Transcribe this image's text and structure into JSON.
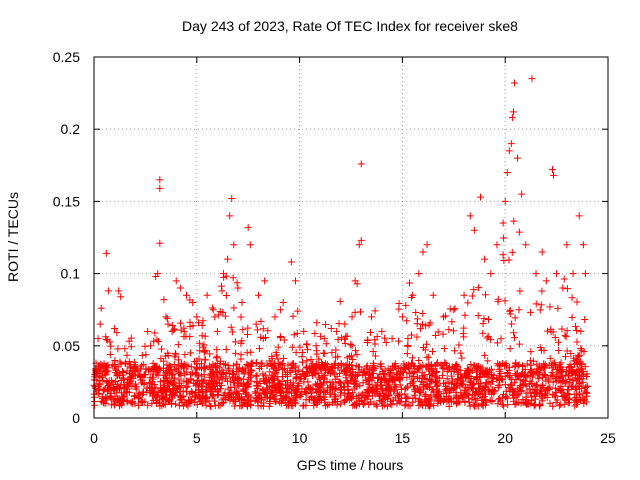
{
  "chart_data": {
    "type": "scatter",
    "title": "Day 243 of 2023, Rate Of TEC Index for receiver ske8",
    "xlabel": "GPS time / hours",
    "ylabel": "ROTI / TECUs",
    "xlim": [
      0,
      25
    ],
    "ylim": [
      0,
      0.25
    ],
    "xticks": [
      "0",
      "5",
      "10",
      "15",
      "20",
      "25"
    ],
    "yticks": [
      "0",
      "0.05",
      "0.1",
      "0.15",
      "0.2",
      "0.25"
    ],
    "grid": true,
    "marker": "plus",
    "color": "#ff0000",
    "series": [
      {
        "points": [
          [
            0.1,
            0.038
          ],
          [
            0.2,
            0.055
          ],
          [
            0.3,
            0.065
          ],
          [
            0.35,
            0.076
          ],
          [
            0.6,
            0.114
          ],
          [
            0.7,
            0.088
          ],
          [
            1.0,
            0.062
          ],
          [
            1.2,
            0.088
          ],
          [
            1.3,
            0.084
          ],
          [
            1.5,
            0.048
          ],
          [
            2.0,
            0.035
          ],
          [
            2.5,
            0.03
          ],
          [
            3.0,
            0.098
          ],
          [
            3.1,
            0.1
          ],
          [
            3.2,
            0.165
          ],
          [
            3.2,
            0.159
          ],
          [
            3.2,
            0.121
          ],
          [
            3.4,
            0.082
          ],
          [
            3.5,
            0.07
          ],
          [
            3.6,
            0.065
          ],
          [
            3.8,
            0.06
          ],
          [
            4.0,
            0.095
          ],
          [
            4.2,
            0.09
          ],
          [
            4.5,
            0.085
          ],
          [
            4.8,
            0.08
          ],
          [
            5.0,
            0.07
          ],
          [
            5.5,
            0.085
          ],
          [
            5.8,
            0.075
          ],
          [
            6.0,
            0.06
          ],
          [
            6.3,
            0.1
          ],
          [
            6.5,
            0.11
          ],
          [
            6.6,
            0.14
          ],
          [
            6.7,
            0.152
          ],
          [
            6.8,
            0.12
          ],
          [
            7.0,
            0.09
          ],
          [
            7.2,
            0.08
          ],
          [
            7.5,
            0.132
          ],
          [
            7.6,
            0.12
          ],
          [
            8.0,
            0.085
          ],
          [
            8.3,
            0.095
          ],
          [
            8.8,
            0.07
          ],
          [
            9.2,
            0.08
          ],
          [
            9.6,
            0.108
          ],
          [
            9.8,
            0.095
          ],
          [
            10.2,
            0.06
          ],
          [
            10.8,
            0.05
          ],
          [
            11.2,
            0.055
          ],
          [
            11.8,
            0.06
          ],
          [
            12.2,
            0.065
          ],
          [
            12.7,
            0.095
          ],
          [
            12.8,
            0.093
          ],
          [
            12.9,
            0.12
          ],
          [
            13.0,
            0.123
          ],
          [
            13.0,
            0.176
          ],
          [
            13.5,
            0.07
          ],
          [
            14.0,
            0.06
          ],
          [
            14.5,
            0.055
          ],
          [
            15.0,
            0.07
          ],
          [
            15.5,
            0.085
          ],
          [
            15.8,
            0.1
          ],
          [
            16.0,
            0.115
          ],
          [
            16.2,
            0.12
          ],
          [
            16.5,
            0.085
          ],
          [
            17.0,
            0.07
          ],
          [
            17.5,
            0.075
          ],
          [
            18.0,
            0.085
          ],
          [
            18.3,
            0.14
          ],
          [
            18.5,
            0.13
          ],
          [
            18.8,
            0.153
          ],
          [
            19.0,
            0.11
          ],
          [
            19.3,
            0.1
          ],
          [
            19.6,
            0.12
          ],
          [
            19.9,
            0.135
          ],
          [
            20.0,
            0.15
          ],
          [
            20.1,
            0.17
          ],
          [
            20.2,
            0.185
          ],
          [
            20.3,
            0.19
          ],
          [
            20.35,
            0.208
          ],
          [
            20.4,
            0.212
          ],
          [
            20.45,
            0.232
          ],
          [
            20.6,
            0.18
          ],
          [
            20.8,
            0.155
          ],
          [
            21.0,
            0.12
          ],
          [
            21.3,
            0.235
          ],
          [
            21.5,
            0.1
          ],
          [
            21.8,
            0.115
          ],
          [
            22.0,
            0.095
          ],
          [
            22.3,
            0.172
          ],
          [
            22.35,
            0.168
          ],
          [
            22.5,
            0.1
          ],
          [
            22.8,
            0.09
          ],
          [
            23.0,
            0.12
          ],
          [
            23.3,
            0.1
          ],
          [
            23.6,
            0.14
          ],
          [
            23.8,
            0.12
          ],
          [
            23.9,
            0.1
          ]
        ]
      }
    ]
  }
}
